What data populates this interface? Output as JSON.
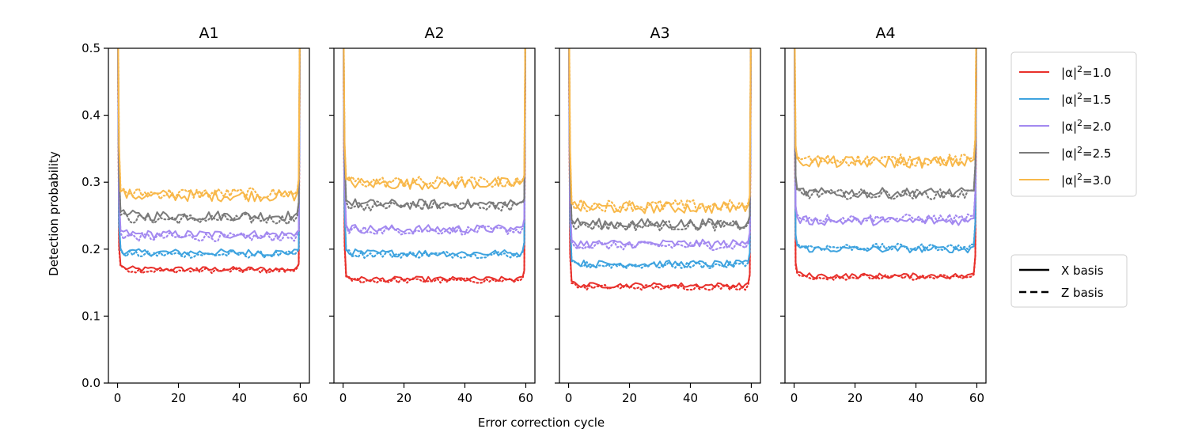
{
  "chart_data": {
    "type": "line",
    "ylabel": "Detection probability",
    "xlabel": "Error correction cycle",
    "xlim": [
      -3,
      63
    ],
    "ylim": [
      0.0,
      0.5
    ],
    "x_ticks": [
      0,
      20,
      40,
      60
    ],
    "x_tick_labels": [
      "0",
      "20",
      "40",
      "60"
    ],
    "y_ticks": [
      0.0,
      0.1,
      0.2,
      0.3,
      0.4,
      0.5
    ],
    "y_tick_labels": [
      "0.0",
      "0.1",
      "0.2",
      "0.3",
      "0.4",
      "0.5"
    ],
    "n_cycles": 60,
    "panels": [
      {
        "title": "A1",
        "x_plateau": [
          0.17,
          0.195,
          0.222,
          0.25,
          0.28
        ],
        "z_plateau": [
          0.168,
          0.192,
          0.218,
          0.245,
          0.283
        ],
        "first": [
          0.205,
          0.24,
          0.28,
          0.315,
          0.355
        ],
        "last": [
          0.178,
          0.2,
          0.228,
          0.27,
          0.305
        ]
      },
      {
        "title": "A2",
        "x_plateau": [
          0.155,
          0.194,
          0.23,
          0.267,
          0.298
        ],
        "z_plateau": [
          0.153,
          0.192,
          0.228,
          0.265,
          0.3
        ],
        "first": [
          0.21,
          0.26,
          0.3,
          0.34,
          0.36
        ],
        "last": [
          0.168,
          0.21,
          0.245,
          0.275,
          0.31
        ]
      },
      {
        "title": "A3",
        "x_plateau": [
          0.146,
          0.178,
          0.208,
          0.238,
          0.262
        ],
        "z_plateau": [
          0.143,
          0.176,
          0.205,
          0.235,
          0.265
        ],
        "first": [
          0.195,
          0.245,
          0.275,
          0.31,
          0.35
        ],
        "last": [
          0.162,
          0.195,
          0.225,
          0.25,
          0.28
        ]
      },
      {
        "title": "A4",
        "x_plateau": [
          0.16,
          0.2,
          0.242,
          0.284,
          0.33
        ],
        "z_plateau": [
          0.158,
          0.203,
          0.246,
          0.282,
          0.333
        ],
        "first": [
          0.18,
          0.222,
          0.265,
          0.31,
          0.355
        ],
        "last": [
          0.19,
          0.24,
          0.285,
          0.325,
          0.365
        ]
      }
    ],
    "series": [
      {
        "name": "|α|²=1.0",
        "label_base": "|α|",
        "label_exp": "2",
        "label_val": "=1.0",
        "color": "#e8302b"
      },
      {
        "name": "|α|²=1.5",
        "label_base": "|α|",
        "label_exp": "2",
        "label_val": "=1.5",
        "color": "#3ea3df"
      },
      {
        "name": "|α|²=2.0",
        "label_base": "|α|",
        "label_exp": "2",
        "label_val": "=2.0",
        "color": "#a389f0"
      },
      {
        "name": "|α|²=2.5",
        "label_base": "|α|",
        "label_exp": "2",
        "label_val": "=2.5",
        "color": "#7a7a7a"
      },
      {
        "name": "|α|²=3.0",
        "label_base": "|α|",
        "label_exp": "2",
        "label_val": "=3.0",
        "color": "#f8b84a"
      }
    ],
    "basis_legend": [
      {
        "label": "X basis",
        "style": "solid"
      },
      {
        "label": "Z basis",
        "style": "dashed"
      }
    ]
  }
}
